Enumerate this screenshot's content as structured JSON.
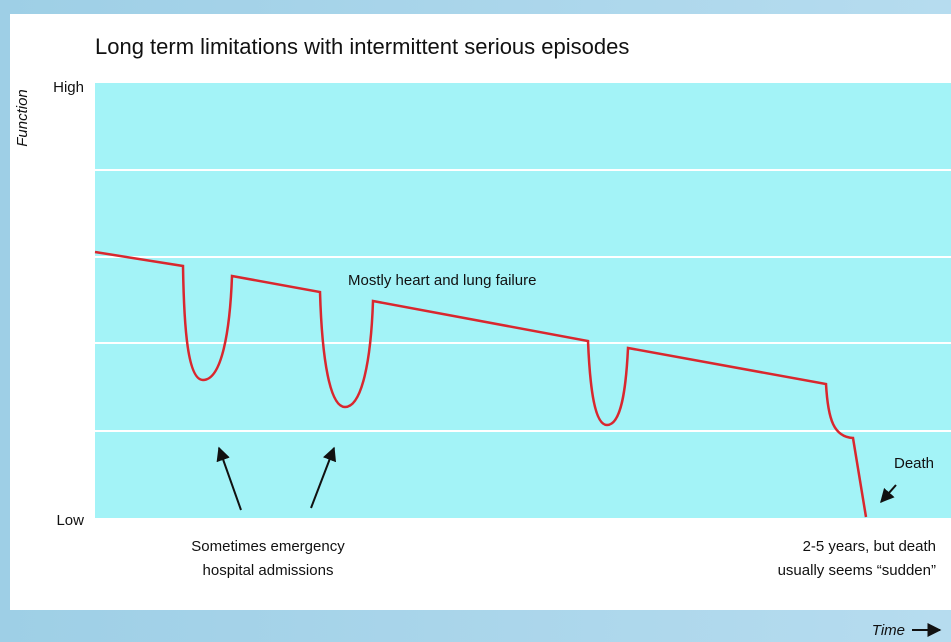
{
  "title": "Long term limitations with intermittent serious episodes",
  "y_axis": {
    "label": "Function",
    "high": "High",
    "low": "Low"
  },
  "x_axis": {
    "label": "Time"
  },
  "annotations": {
    "cause": "Mostly heart and lung failure",
    "admissions": [
      "Sometimes emergency",
      "hospital admissions"
    ],
    "death": "Death",
    "duration": [
      "2-5 years, but death",
      "usually seems “sudden”"
    ]
  }
}
